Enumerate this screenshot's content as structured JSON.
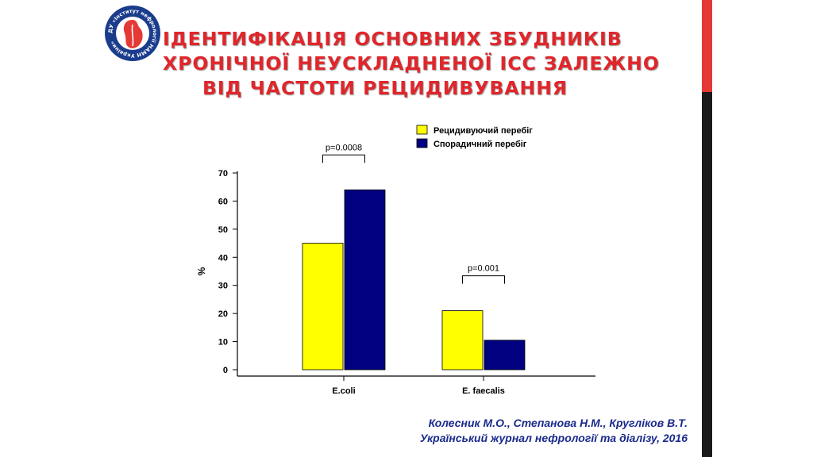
{
  "logo": {
    "text": "ДУ «Інститут нефрології НАМН України»",
    "colors": {
      "ring": "#1a3c8c",
      "fill": "#e53935",
      "inner": "#ffffff"
    }
  },
  "title_lines": [
    "ІДЕНТИФІКАЦІЯ ОСНОВНИХ ЗБУДНИКІВ",
    "ХРОНІЧНОЇ НЕУСКЛАДНЕНОЇ ІСС ЗАЛЕЖНО",
    "ВІД ЧАСТОТИ РЕЦИДИВУВАННЯ"
  ],
  "citation": {
    "authors": "Колесник М.О., Степанова Н.М., Кругліков В.Т.",
    "journal": "Український журнал нефрології та діалізу, 2016"
  },
  "chart_data": {
    "type": "bar",
    "categories": [
      "E.coli",
      "E. faecalis"
    ],
    "series": [
      {
        "name": "Рецидивуючий перебіг",
        "color": "#ffff00",
        "values": [
          45,
          21
        ]
      },
      {
        "name": "Спорадичний перебіг",
        "color": "#000080",
        "values": [
          64,
          10.5
        ]
      }
    ],
    "ylabel": "%",
    "ylim": [
      0,
      70
    ],
    "yticks": [
      0,
      10,
      20,
      30,
      40,
      50,
      60,
      70
    ],
    "grid": false,
    "legend_position": "top-right",
    "annotations": [
      {
        "category": "E.coli",
        "text": "p=0.0008"
      },
      {
        "category": "E. faecalis",
        "text": "p=0.001"
      }
    ]
  },
  "colors": {
    "title": "#e0262b",
    "citation": "#1a2a8c",
    "sidebar_dark": "#1a1a1a",
    "sidebar_accent": "#e53935"
  }
}
